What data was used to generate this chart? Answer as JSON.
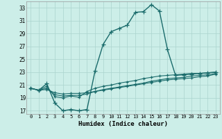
{
  "xlabel": "Humidex (Indice chaleur)",
  "background_color": "#cceee8",
  "grid_color": "#aad4ce",
  "line_color": "#1a6b6b",
  "xlim": [
    -0.5,
    23.5
  ],
  "ylim": [
    16.5,
    34.0
  ],
  "yticks": [
    17,
    19,
    21,
    23,
    25,
    27,
    29,
    31,
    33
  ],
  "xticks": [
    0,
    1,
    2,
    3,
    4,
    5,
    6,
    7,
    8,
    9,
    10,
    11,
    12,
    13,
    14,
    15,
    16,
    17,
    18,
    19,
    20,
    21,
    22,
    23
  ],
  "series": [
    [
      20.5,
      20.2,
      21.2,
      18.2,
      17.0,
      17.2,
      17.0,
      17.2,
      23.2,
      27.3,
      29.3,
      29.8,
      30.3,
      32.3,
      32.4,
      33.5,
      32.5,
      26.5,
      22.5,
      22.6,
      22.7,
      22.8,
      22.9,
      23.0
    ],
    [
      20.5,
      20.2,
      20.8,
      19.2,
      19.0,
      19.3,
      19.1,
      20.0,
      20.5,
      20.8,
      21.0,
      21.3,
      21.5,
      21.7,
      22.0,
      22.2,
      22.4,
      22.5,
      22.6,
      22.7,
      22.8,
      22.8,
      22.9,
      23.0
    ],
    [
      20.5,
      20.2,
      20.5,
      19.5,
      19.3,
      19.4,
      19.4,
      19.6,
      20.0,
      20.3,
      20.5,
      20.7,
      20.9,
      21.1,
      21.3,
      21.6,
      21.8,
      22.0,
      22.1,
      22.2,
      22.4,
      22.5,
      22.6,
      22.8
    ],
    [
      20.5,
      20.2,
      20.3,
      19.8,
      19.6,
      19.7,
      19.7,
      19.8,
      20.0,
      20.2,
      20.4,
      20.6,
      20.8,
      21.0,
      21.2,
      21.4,
      21.6,
      21.8,
      21.9,
      22.0,
      22.1,
      22.3,
      22.4,
      22.7
    ]
  ]
}
